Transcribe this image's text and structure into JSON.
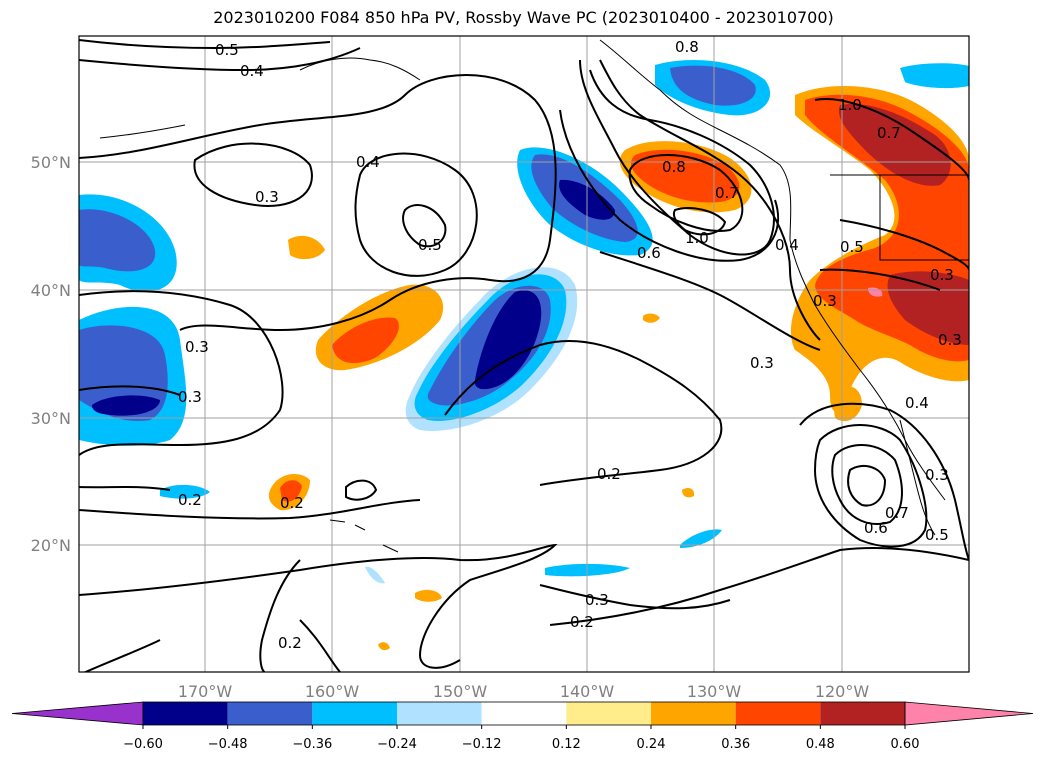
{
  "title": "2023010200 F084 850 hPa PV, Rossby Wave PC (2023010400 - 2023010700)",
  "lat_labels": [
    "50°N",
    "40°N",
    "30°N",
    "20°N"
  ],
  "lon_labels": [
    "170°W",
    "160°W",
    "150°W",
    "140°W",
    "130°W",
    "120°W"
  ],
  "contour_labels": [
    "0.5",
    "0.4",
    "0.4",
    "0.3",
    "0.5",
    "0.3",
    "0.3",
    "0.2",
    "0.2",
    "0.2",
    "0.3",
    "0.2",
    "0.2",
    "0.8",
    "1.0",
    "0.7",
    "0.8",
    "0.7",
    "1.0",
    "0.6",
    "0.4",
    "0.5",
    "0.3",
    "0.3",
    "0.3",
    "0.4",
    "0.6",
    "0.7",
    "0.5",
    "0.3",
    "0.3"
  ],
  "colorbar": {
    "ticks": [
      "−0.60",
      "−0.48",
      "−0.36",
      "−0.24",
      "−0.12",
      "0.12",
      "0.24",
      "0.36",
      "0.48",
      "0.60"
    ],
    "colors": [
      "#9932cc",
      "#00008b",
      "#3a5fcd",
      "#00bfff",
      "#b0e2ff",
      "#ffffff",
      "#ffec8b",
      "#ffa500",
      "#ff4500",
      "#b22222",
      "#ff82ab"
    ]
  }
}
